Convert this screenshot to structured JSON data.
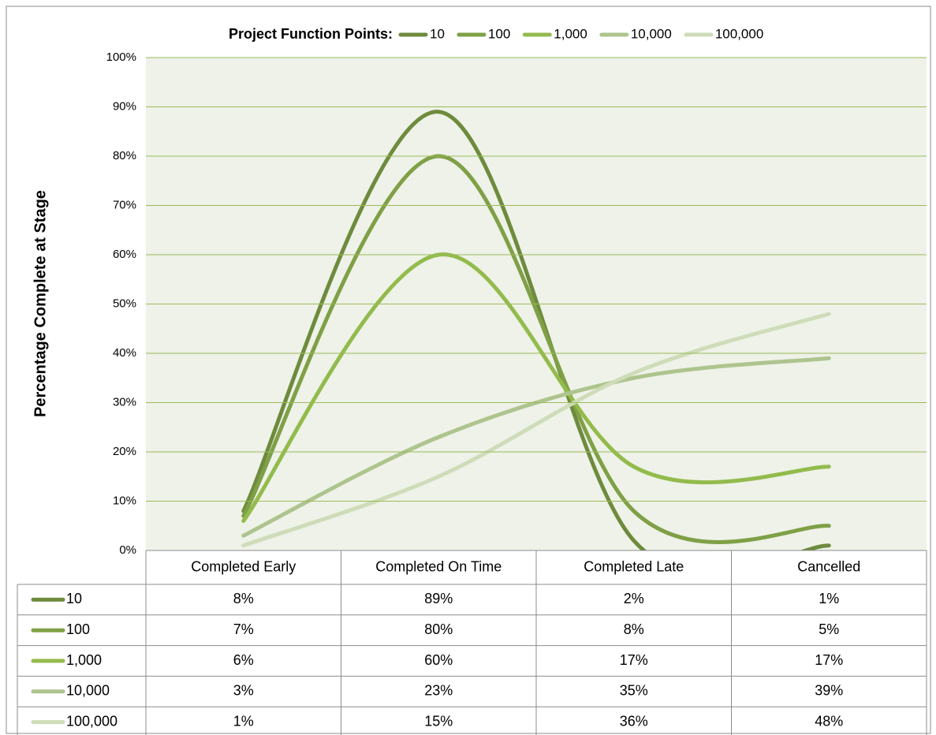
{
  "chart_data": {
    "type": "line",
    "legend_title": "Project Function Points:",
    "y_label": "Percentage Complete at Stage",
    "categories": [
      "Completed Early",
      "Completed On Time",
      "Completed Late",
      "Cancelled"
    ],
    "series": [
      {
        "name": "10",
        "color": "#6e8b3d",
        "values": [
          8,
          89,
          2,
          1
        ],
        "value_labels": [
          "8%",
          "89%",
          "2%",
          "1%"
        ]
      },
      {
        "name": "100",
        "color": "#7fa046",
        "values": [
          7,
          80,
          8,
          5
        ],
        "value_labels": [
          "7%",
          "80%",
          "8%",
          "5%"
        ]
      },
      {
        "name": "1,000",
        "color": "#93bb4c",
        "values": [
          6,
          60,
          17,
          17
        ],
        "value_labels": [
          "6%",
          "60%",
          "17%",
          "17%"
        ]
      },
      {
        "name": "10,000",
        "color": "#aec48e",
        "values": [
          3,
          23,
          35,
          39
        ],
        "value_labels": [
          "3%",
          "23%",
          "35%",
          "39%"
        ]
      },
      {
        "name": "100,000",
        "color": "#cfdcb9",
        "values": [
          1,
          15,
          36,
          48
        ],
        "value_labels": [
          "1%",
          "15%",
          "36%",
          "48%"
        ]
      }
    ],
    "ylim": [
      0,
      100
    ],
    "yticks": [
      {
        "value": 0,
        "label": "0%"
      },
      {
        "value": 10,
        "label": "10%"
      },
      {
        "value": 20,
        "label": "20%"
      },
      {
        "value": 30,
        "label": "30%"
      },
      {
        "value": 40,
        "label": "40%"
      },
      {
        "value": 50,
        "label": "50%"
      },
      {
        "value": 60,
        "label": "60%"
      },
      {
        "value": 70,
        "label": "70%"
      },
      {
        "value": 80,
        "label": "80%"
      },
      {
        "value": 90,
        "label": "90%"
      },
      {
        "value": 100,
        "label": "100%"
      }
    ],
    "grid": true,
    "smooth": true,
    "legend": "top"
  }
}
